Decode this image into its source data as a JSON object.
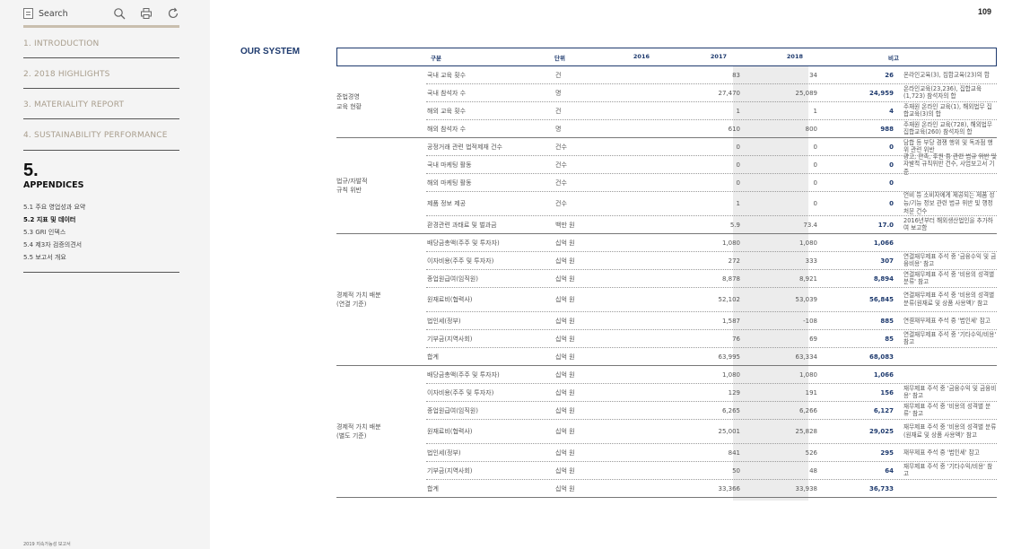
{
  "sidebar": {
    "search_label": "Search",
    "menu": [
      {
        "label": "1.  INTRODUCTION"
      },
      {
        "label": "2.  2018 HIGHLIGHTS"
      },
      {
        "label": "3.  MATERIALITY REPORT"
      },
      {
        "label": "4.  SUSTAINABILITY PERFORMANCE"
      }
    ],
    "current_num": "5.",
    "current_title": "APPENDICES",
    "sub_items": [
      {
        "label": "5.1  주요 영업성과 요약"
      },
      {
        "label": "5.2  지표 및 데이터"
      },
      {
        "label": "5.3  GRI 인덱스"
      },
      {
        "label": "5.4  제3자 검증의견서"
      },
      {
        "label": "5.5  보고서 개요"
      }
    ],
    "footer": "2019 지속가능성 보고서"
  },
  "page": {
    "number": "109",
    "section": "OUR SYSTEM"
  },
  "table": {
    "headers": {
      "category": "구분",
      "unit": "단위",
      "y2016": "2016",
      "y2017": "2017",
      "y2018": "2018",
      "note": "비고"
    },
    "groups": [
      {
        "label": "준법경영\n교육 현황"
      },
      {
        "label": "법규/자발적\n규칙 위반"
      },
      {
        "label": "경제적 가치 배분\n(연결 기준)"
      },
      {
        "label": "경제적 가치 배분\n(별도 기준)"
      }
    ],
    "rows": [
      {
        "item": "국내 교육 횟수",
        "unit": "건",
        "y2016": "83",
        "y2017": "34",
        "y2018": "26",
        "note": "온라인교육(3), 집합교육(23)의 합"
      },
      {
        "item": "국내 참석자 수",
        "unit": "명",
        "y2016": "27,470",
        "y2017": "25,089",
        "y2018": "24,959",
        "note": "온라인교육(23,236), 집합교육(1,723) 참석자의 합"
      },
      {
        "item": "해외 교육 횟수",
        "unit": "건",
        "y2016": "1",
        "y2017": "1",
        "y2018": "4",
        "note": "주재원 온라인 교육(1), 해외법무 집합교육(3)의 합"
      },
      {
        "item": "해외 참석자 수",
        "unit": "명",
        "y2016": "610",
        "y2017": "800",
        "y2018": "988",
        "note": "주재원 온라인 교육(728), 해외법무 집합교육(260) 참석자의 합"
      },
      {
        "item": "공정거래 관련 법적제재 건수",
        "unit": "건수",
        "y2016": "0",
        "y2017": "0",
        "y2018": "0",
        "note": "담합 등 부당 경쟁 행위 및 독과점 행위 관련 위반"
      },
      {
        "item": "국내 마케팅 활동",
        "unit": "건수",
        "y2016": "0",
        "y2017": "0",
        "y2018": "0",
        "note": "광고, 판촉, 후원 등 관련 법규 위반 및 자발적 규칙위반 건수, 사업보고서 기준"
      },
      {
        "item": "해외 마케팅 활동",
        "unit": "건수",
        "y2016": "0",
        "y2017": "0",
        "y2018": "0",
        "note": ""
      },
      {
        "item": "제품 정보 제공",
        "unit": "건수",
        "y2016": "1",
        "y2017": "0",
        "y2018": "0",
        "note": "언비 등 소비자에게 제공되는 제품 성능/기능 정보 관련 법규 위반 및 행정처분 건수"
      },
      {
        "item": "환경관련 과태료 및 벌과금",
        "unit": "백만 원",
        "y2016": "5.9",
        "y2017": "73.4",
        "y2018": "17.0",
        "note": "2016년부터 해외생산법인을 추가하여 보고함"
      },
      {
        "item": "배당금총액(주주 및 투자자)",
        "unit": "십억 원",
        "y2016": "1,080",
        "y2017": "1,080",
        "y2018": "1,066",
        "note": ""
      },
      {
        "item": "이자비용(주주 및 투자자)",
        "unit": "십억 원",
        "y2016": "272",
        "y2017": "333",
        "y2018": "307",
        "note": "연결재무제표 주석 중 '금융수익 및 금융비용' 참고"
      },
      {
        "item": "종업원급여(임직원)",
        "unit": "십억 원",
        "y2016": "8,878",
        "y2017": "8,921",
        "y2018": "8,894",
        "note": "연결재무제표 주석 중 '비용의 성격별 분류' 참고"
      },
      {
        "item": "원재료비(협력사)",
        "unit": "십억 원",
        "y2016": "52,102",
        "y2017": "53,039",
        "y2018": "56,845",
        "note": "연결재무제표 주석 중 '비용의 성격별 분류(원재료 및 상품 사용액)' 참고"
      },
      {
        "item": "법인세(정부)",
        "unit": "십억 원",
        "y2016": "1,587",
        "y2017": "-108",
        "y2018": "885",
        "note": "연결재무제표 주석 중 '법인세' 참고"
      },
      {
        "item": "기부금(지역사회)",
        "unit": "십억 원",
        "y2016": "76",
        "y2017": "69",
        "y2018": "85",
        "note": "연결재무제표 주석 중 '기타수익/비용' 참고"
      },
      {
        "item": "합계",
        "unit": "십억 원",
        "y2016": "63,995",
        "y2017": "63,334",
        "y2018": "68,083",
        "note": ""
      },
      {
        "item": "배당금총액(주주 및 투자자)",
        "unit": "십억 원",
        "y2016": "1,080",
        "y2017": "1,080",
        "y2018": "1,066",
        "note": ""
      },
      {
        "item": "이자비용(주주 및 투자자)",
        "unit": "십억 원",
        "y2016": "129",
        "y2017": "191",
        "y2018": "156",
        "note": "재무제표 주석 중 '금융수익 및 금융비용' 참고"
      },
      {
        "item": "종업원급여(임직원)",
        "unit": "십억 원",
        "y2016": "6,265",
        "y2017": "6,266",
        "y2018": "6,127",
        "note": "재무제표 주석 중 '비용의 성격별 분류' 참고"
      },
      {
        "item": "원재료비(협력사)",
        "unit": "십억 원",
        "y2016": "25,001",
        "y2017": "25,828",
        "y2018": "29,025",
        "note": "재무제표 주석 중 '비용의 성격별 분류(원재료 및 상품 사용액)' 참고"
      },
      {
        "item": "법인세(정부)",
        "unit": "십억 원",
        "y2016": "841",
        "y2017": "526",
        "y2018": "295",
        "note": "재무제표 주석 중 '법인세' 참고"
      },
      {
        "item": "기부금(지역사회)",
        "unit": "십억 원",
        "y2016": "50",
        "y2017": "48",
        "y2018": "64",
        "note": "재무제표 주석 중 '기타수익/비용' 참고"
      },
      {
        "item": "합계",
        "unit": "십억 원",
        "y2016": "33,366",
        "y2017": "33,938",
        "y2018": "36,733",
        "note": ""
      }
    ]
  }
}
